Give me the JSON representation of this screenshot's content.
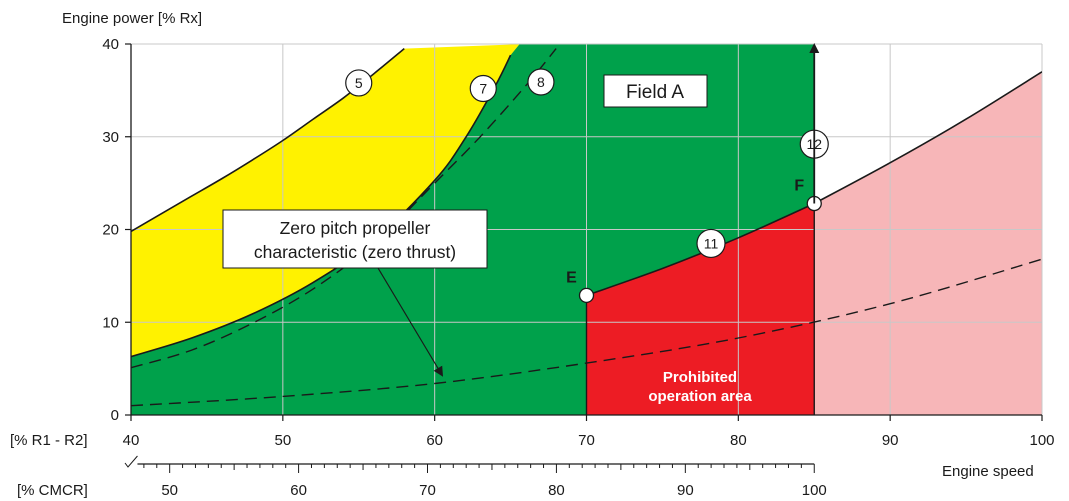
{
  "chart_data": {
    "type": "area",
    "title": "",
    "ylabel": "Engine power [% Rx]",
    "xlabel": "Engine speed",
    "xlim": [
      40,
      100
    ],
    "ylim": [
      0,
      40
    ],
    "x_ticks": [
      40,
      50,
      60,
      70,
      80,
      90,
      100
    ],
    "y_ticks": [
      0,
      10,
      20,
      30,
      40
    ],
    "x_axis_label": "[% R1 - R2]",
    "secondary_x_axis": {
      "label": "[% CMCR]",
      "ticks": [
        50,
        60,
        70,
        80,
        90,
        100
      ]
    },
    "grid": true,
    "colors": {
      "field_a": "#00a14b",
      "yellow": "#fff200",
      "prohibited": "#ed1c24",
      "light": "#f7b6b8",
      "curve": "#1a1a1a"
    },
    "curves": [
      {
        "id": "5",
        "style": "solid",
        "x": [
          40,
          42,
          44,
          46,
          48,
          50,
          52,
          54,
          56,
          58
        ],
        "y": [
          19.8,
          21.7,
          23.6,
          25.5,
          27.5,
          29.6,
          31.9,
          34.2,
          36.8,
          39.5
        ]
      },
      {
        "id": "7",
        "style": "solid",
        "x": [
          40,
          44,
          48,
          52,
          56,
          60,
          62,
          64,
          65
        ],
        "y": [
          6.3,
          8.3,
          10.9,
          14.3,
          18.8,
          25.3,
          29.8,
          35.5,
          38.8
        ]
      },
      {
        "id": "8",
        "style": "dashed",
        "x": [
          40,
          44,
          48,
          52,
          56,
          60,
          63,
          66,
          68
        ],
        "y": [
          5.1,
          7.0,
          9.9,
          13.6,
          18.5,
          25.0,
          30.0,
          35.5,
          39.5
        ]
      },
      {
        "id": "11",
        "style": "solid",
        "x": [
          70,
          75,
          80,
          85
        ],
        "y": [
          12.9,
          15.8,
          19.1,
          22.8
        ]
      },
      {
        "id": "upper-limit",
        "style": "solid",
        "x": [
          85,
          90,
          95,
          100
        ],
        "y": [
          22.8,
          27.2,
          31.9,
          37.0
        ]
      },
      {
        "id": "zero-pitch",
        "style": "dashed",
        "x": [
          40,
          50,
          60,
          70,
          80,
          90,
          100
        ],
        "y": [
          1.0,
          2.0,
          3.4,
          5.6,
          8.3,
          12.0,
          16.8
        ]
      },
      {
        "id": "12",
        "style": "solid",
        "x": [
          85,
          85
        ],
        "y": [
          22.8,
          40
        ]
      }
    ],
    "points": [
      {
        "name": "E",
        "x": 70,
        "y": 12.9
      },
      {
        "name": "F",
        "x": 85,
        "y": 22.8
      }
    ],
    "markers": [
      {
        "label": "5",
        "x": 55,
        "y": 35.8
      },
      {
        "label": "7",
        "x": 63.2,
        "y": 35.2
      },
      {
        "label": "8",
        "x": 67,
        "y": 35.9
      },
      {
        "label": "11",
        "x": 78.2,
        "y": 18.5
      },
      {
        "label": "12",
        "x": 85,
        "y": 29.2
      }
    ],
    "annotations": {
      "field_a": "Field A",
      "zero_pitch_line1": "Zero pitch propeller",
      "zero_pitch_line2": "characteristic (zero thrust)",
      "prohibited_line1": "Prohibited",
      "prohibited_line2": "operation area"
    }
  }
}
